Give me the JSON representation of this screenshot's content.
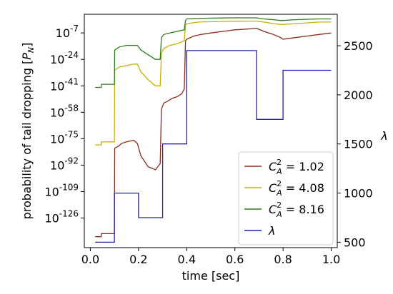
{
  "chart_data": {
    "type": "line",
    "xlabel": "time [sec]",
    "ylabel_left": "probability of tail dropping [P_N]",
    "ylabel_right": "λ",
    "xlim": [
      -0.025,
      1.025
    ],
    "left_axis": {
      "scale": "log",
      "exponent_lim": [
        -145,
        5
      ],
      "ticks": [
        {
          "exp": -126,
          "label": "10^-126"
        },
        {
          "exp": -109,
          "label": "10^-109"
        },
        {
          "exp": -92,
          "label": "10^-92"
        },
        {
          "exp": -75,
          "label": "10^-75"
        },
        {
          "exp": -58,
          "label": "10^-58"
        },
        {
          "exp": -41,
          "label": "10^-41"
        },
        {
          "exp": -24,
          "label": "10^-24"
        },
        {
          "exp": -7,
          "label": "10^-7"
        }
      ]
    },
    "right_axis": {
      "scale": "linear",
      "lim": [
        445,
        2820
      ],
      "ticks": [
        500,
        1000,
        1500,
        2000,
        2500
      ]
    },
    "x_ticks": [
      0.0,
      0.2,
      0.4,
      0.6,
      0.8,
      1.0
    ],
    "x_tick_labels": [
      "0.0",
      "0.2",
      "0.4",
      "0.6",
      "0.8",
      "1.0"
    ],
    "legend": {
      "placement": "lower right",
      "entries": [
        {
          "base": "C",
          "sub": "A",
          "sup": "2",
          "value": "= 1.02",
          "series": 0
        },
        {
          "base": "C",
          "sub": "A",
          "sup": "2",
          "value": "= 4.08",
          "series": 1
        },
        {
          "base": "C",
          "sub": "A",
          "sup": "2",
          "value": "= 8.16",
          "series": 2
        },
        {
          "base": "λ",
          "sub": "",
          "sup": "",
          "value": "",
          "series": 3
        }
      ]
    },
    "series": [
      {
        "name": "C_A^2 = 1.02",
        "axis": "left",
        "color": "#8c2b1a",
        "x": [
          0.02,
          0.045,
          0.046,
          0.1,
          0.101,
          0.115,
          0.13,
          0.15,
          0.18,
          0.195,
          0.21,
          0.24,
          0.27,
          0.29,
          0.295,
          0.305,
          0.32,
          0.34,
          0.36,
          0.38,
          0.39,
          0.395,
          0.4,
          0.43,
          0.46,
          0.5,
          0.55,
          0.6,
          0.65,
          0.69,
          0.72,
          0.76,
          0.79,
          0.8,
          0.85,
          0.9,
          0.95,
          1.0
        ],
        "y": [
          -138,
          -138,
          -136,
          -136,
          -81,
          -80,
          -78,
          -77,
          -76,
          -78,
          -86,
          -93,
          -95,
          -91,
          -56,
          -52,
          -51,
          -49,
          -48,
          -46,
          -43,
          -12,
          -11,
          -9,
          -8,
          -7,
          -6,
          -5,
          -4.5,
          -4,
          -6,
          -8,
          -10,
          -11,
          -10,
          -9,
          -8,
          -7
        ]
      },
      {
        "name": "C_A^2 = 4.08",
        "axis": "left",
        "color": "#c9b000",
        "x": [
          0.02,
          0.045,
          0.046,
          0.1,
          0.101,
          0.12,
          0.15,
          0.18,
          0.195,
          0.21,
          0.24,
          0.27,
          0.29,
          0.295,
          0.305,
          0.33,
          0.36,
          0.39,
          0.395,
          0.4,
          0.45,
          0.5,
          0.55,
          0.6,
          0.65,
          0.69,
          0.72,
          0.76,
          0.79,
          0.8,
          0.85,
          0.9,
          0.95,
          1.0
        ],
        "y": [
          -79,
          -79,
          -77,
          -77,
          -31,
          -29,
          -28,
          -27,
          -27,
          -32,
          -37,
          -41,
          -41,
          -20,
          -17,
          -15,
          -14,
          -12,
          -2,
          -1,
          0,
          0.2,
          0.4,
          0.5,
          0.6,
          0.6,
          0,
          -1,
          -1.5,
          -1.5,
          -1,
          -0.5,
          0,
          0
        ]
      },
      {
        "name": "C_A^2 = 8.16",
        "axis": "left",
        "color": "#2e7d1c",
        "x": [
          0.02,
          0.045,
          0.046,
          0.1,
          0.101,
          0.12,
          0.15,
          0.18,
          0.195,
          0.21,
          0.24,
          0.27,
          0.29,
          0.295,
          0.305,
          0.33,
          0.36,
          0.39,
          0.395,
          0.4,
          0.45,
          0.5,
          0.55,
          0.6,
          0.65,
          0.69,
          0.72,
          0.76,
          0.79,
          0.8,
          0.85,
          0.9,
          0.95,
          1.0
        ],
        "y": [
          -42,
          -42,
          -40,
          -40,
          -18,
          -16,
          -15,
          -15,
          -15,
          -18,
          -21,
          -24,
          -24,
          -10,
          -8,
          -7,
          -6,
          -5,
          1,
          2,
          2.3,
          2.5,
          2.6,
          2.7,
          2.7,
          2.7,
          2,
          1.5,
          1,
          1,
          1.5,
          1.8,
          2,
          2
        ]
      },
      {
        "name": "λ",
        "axis": "right",
        "color": "#1f1fb0",
        "x": [
          0.02,
          0.1,
          0.1,
          0.2,
          0.2,
          0.3,
          0.3,
          0.4,
          0.4,
          0.69,
          0.69,
          0.8,
          0.8,
          1.0
        ],
        "y": [
          500,
          500,
          1000,
          1000,
          750,
          750,
          1500,
          1500,
          2450,
          2450,
          1750,
          1750,
          2250,
          2250
        ]
      }
    ]
  }
}
